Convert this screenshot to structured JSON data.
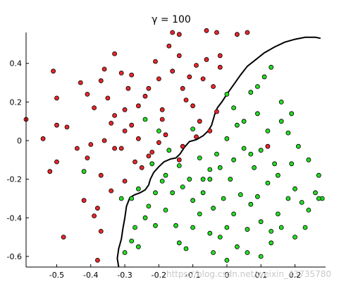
{
  "chart_data": {
    "type": "scatter",
    "title": "γ = 100",
    "xlabel": "",
    "ylabel": "",
    "xlim": [
      -0.59,
      0.29
    ],
    "ylim": [
      -0.655,
      0.56
    ],
    "xticks": [
      -0.5,
      -0.4,
      -0.3,
      -0.2,
      -0.1,
      0,
      0.1,
      0.2
    ],
    "xtick_labels": [
      "-0.5",
      "-0.4",
      "-0.3",
      "-0.2",
      "-0.1",
      "0",
      "0.1",
      "0.2"
    ],
    "yticks": [
      0.4,
      0.2,
      0,
      -0.2,
      -0.4,
      -0.6
    ],
    "ytick_labels": [
      "0.4",
      "0.2",
      "0",
      "-0.2",
      "-0.4",
      "-0.6"
    ],
    "grid": false,
    "series": [
      {
        "color": "#e8262a",
        "points": [
          [
            -0.59,
            0.11
          ],
          [
            -0.51,
            0.36
          ],
          [
            -0.5,
            0.22
          ],
          [
            -0.5,
            0.08
          ],
          [
            -0.5,
            -0.11
          ],
          [
            -0.52,
            -0.16
          ],
          [
            -0.47,
            0.07
          ],
          [
            -0.43,
            0.3
          ],
          [
            -0.41,
            0.24
          ],
          [
            -0.39,
            0.17
          ],
          [
            -0.37,
            0.31
          ],
          [
            -0.36,
            0.37
          ],
          [
            -0.35,
            0.22
          ],
          [
            -0.34,
            0.09
          ],
          [
            -0.36,
            0.0
          ],
          [
            -0.4,
            -0.02
          ],
          [
            -0.41,
            -0.09
          ],
          [
            -0.42,
            -0.31
          ],
          [
            -0.38,
            -0.35
          ],
          [
            -0.37,
            -0.18
          ],
          [
            -0.33,
            -0.04
          ],
          [
            -0.31,
            0.35
          ],
          [
            -0.3,
            0.16
          ],
          [
            -0.28,
            0.08
          ],
          [
            -0.26,
            0.01
          ],
          [
            -0.27,
            -0.11
          ],
          [
            -0.3,
            -0.21
          ],
          [
            -0.29,
            0.27
          ],
          [
            -0.24,
            0.23
          ],
          [
            -0.2,
            0.32
          ],
          [
            -0.19,
            0.16
          ],
          [
            -0.18,
            0.03
          ],
          [
            -0.17,
            0.49
          ],
          [
            -0.14,
            0.44
          ],
          [
            -0.13,
            0.27
          ],
          [
            -0.11,
            0.33
          ],
          [
            -0.09,
            0.39
          ],
          [
            -0.06,
            0.42
          ],
          [
            -0.04,
            0.28
          ],
          [
            -0.03,
            0.15
          ],
          [
            -0.09,
            0.02
          ],
          [
            -0.13,
            -0.03
          ],
          [
            -0.2,
            -0.01
          ],
          [
            -0.23,
            -0.08
          ],
          [
            -0.16,
            0.56
          ],
          [
            -0.14,
            0.55
          ],
          [
            -0.06,
            0.57
          ],
          [
            -0.03,
            0.56
          ],
          [
            -0.02,
            0.44
          ],
          [
            0.03,
            0.55
          ],
          [
            0.06,
            0.56
          ],
          [
            -0.31,
            -0.04
          ],
          [
            -0.33,
            0.45
          ],
          [
            -0.19,
            0.11
          ],
          [
            -0.22,
            -0.06
          ],
          [
            -0.1,
            0.18
          ],
          [
            -0.44,
            -0.04
          ],
          [
            -0.39,
            -0.39
          ],
          [
            -0.38,
            -0.62
          ],
          [
            -0.54,
            0.01
          ],
          [
            -0.34,
            -0.26
          ],
          [
            -0.25,
            -0.14
          ],
          [
            -0.48,
            -0.5
          ],
          [
            -0.37,
            -0.47
          ],
          [
            0.12,
            -0.03
          ],
          [
            -0.28,
            0.34
          ],
          [
            -0.12,
            0.21
          ],
          [
            -0.08,
            0.1
          ],
          [
            -0.05,
            0.05
          ],
          [
            -0.16,
            0.36
          ],
          [
            -0.21,
            0.41
          ],
          [
            -0.26,
            0.18
          ],
          [
            -0.3,
            0.05
          ],
          [
            -0.14,
            -0.1
          ],
          [
            -0.07,
            0.32
          ],
          [
            -0.02,
            0.38
          ],
          [
            -0.33,
            0.13
          ],
          [
            -0.23,
            0.27
          ]
        ]
      },
      {
        "color": "#22dd22",
        "points": [
          [
            0.0,
            0.24
          ],
          [
            0.02,
            0.17
          ],
          [
            0.05,
            0.1
          ],
          [
            0.07,
            0.25
          ],
          [
            0.09,
            0.28
          ],
          [
            0.11,
            0.33
          ],
          [
            0.13,
            0.38
          ],
          [
            0.16,
            0.2
          ],
          [
            0.16,
            0.1
          ],
          [
            0.19,
            0.14
          ],
          [
            0.12,
            0.05
          ],
          [
            0.1,
            -0.05
          ],
          [
            0.08,
            -0.14
          ],
          [
            0.05,
            -0.04
          ],
          [
            0.02,
            -0.1
          ],
          [
            0.0,
            0.01
          ],
          [
            -0.03,
            -0.07
          ],
          [
            -0.05,
            -0.15
          ],
          [
            -0.07,
            -0.2
          ],
          [
            -0.11,
            -0.2
          ],
          [
            -0.14,
            -0.13
          ],
          [
            -0.18,
            -0.18
          ],
          [
            -0.22,
            -0.12
          ],
          [
            -0.21,
            -0.27
          ],
          [
            -0.26,
            -0.25
          ],
          [
            -0.28,
            -0.3
          ],
          [
            -0.31,
            -0.3
          ],
          [
            -0.27,
            -0.45
          ],
          [
            -0.28,
            -0.52
          ],
          [
            -0.3,
            -0.58
          ],
          [
            -0.24,
            -0.4
          ],
          [
            -0.21,
            -0.44
          ],
          [
            -0.18,
            -0.36
          ],
          [
            -0.15,
            -0.44
          ],
          [
            -0.14,
            -0.53
          ],
          [
            -0.12,
            -0.56
          ],
          [
            -0.1,
            -0.45
          ],
          [
            -0.08,
            -0.38
          ],
          [
            -0.05,
            -0.48
          ],
          [
            -0.04,
            -0.58
          ],
          [
            -0.02,
            -0.5
          ],
          [
            0.0,
            -0.45
          ],
          [
            0.02,
            -0.38
          ],
          [
            0.04,
            -0.28
          ],
          [
            0.07,
            -0.33
          ],
          [
            0.1,
            -0.42
          ],
          [
            0.13,
            -0.47
          ],
          [
            0.15,
            -0.38
          ],
          [
            0.18,
            -0.3
          ],
          [
            0.2,
            -0.25
          ],
          [
            0.22,
            -0.32
          ],
          [
            0.23,
            -0.45
          ],
          [
            0.24,
            -0.36
          ],
          [
            0.26,
            -0.27
          ],
          [
            0.27,
            -0.18
          ],
          [
            0.24,
            -0.1
          ],
          [
            0.21,
            -0.03
          ],
          [
            0.18,
            0.04
          ],
          [
            0.14,
            -0.12
          ],
          [
            0.12,
            -0.22
          ],
          [
            0.09,
            -0.29
          ],
          [
            0.06,
            -0.46
          ],
          [
            0.03,
            -0.55
          ],
          [
            0.0,
            -0.62
          ],
          [
            0.06,
            -0.58
          ],
          [
            0.1,
            -0.6
          ],
          [
            0.13,
            -0.53
          ],
          [
            0.16,
            -0.45
          ],
          [
            0.2,
            -0.5
          ],
          [
            -0.01,
            -0.3
          ],
          [
            -0.04,
            -0.35
          ],
          [
            -0.07,
            -0.27
          ],
          [
            -0.1,
            -0.31
          ],
          [
            -0.13,
            -0.24
          ],
          [
            -0.16,
            -0.27
          ],
          [
            -0.19,
            -0.21
          ],
          [
            -0.23,
            -0.34
          ],
          [
            -0.2,
            0.05
          ],
          [
            -0.24,
            0.11
          ],
          [
            -0.1,
            0.06
          ],
          [
            0.03,
            0.08
          ],
          [
            -0.42,
            -0.16
          ],
          [
            0.28,
            -0.3
          ],
          [
            0.27,
            -0.3
          ],
          [
            -0.05,
            -0.2
          ],
          [
            0.01,
            -0.2
          ],
          [
            0.07,
            -0.07
          ],
          [
            0.15,
            -0.18
          ],
          [
            0.19,
            -0.12
          ],
          [
            -0.02,
            -0.14
          ],
          [
            -0.08,
            -0.09
          ],
          [
            0.09,
            0.14
          ],
          [
            -0.17,
            -0.05
          ],
          [
            -0.26,
            -0.55
          ]
        ]
      }
    ],
    "decision_boundary": [
      [
        -0.318,
        -0.655
      ],
      [
        -0.322,
        -0.61
      ],
      [
        -0.318,
        -0.56
      ],
      [
        -0.31,
        -0.51
      ],
      [
        -0.306,
        -0.46
      ],
      [
        -0.3,
        -0.4
      ],
      [
        -0.295,
        -0.34
      ],
      [
        -0.285,
        -0.295
      ],
      [
        -0.27,
        -0.28
      ],
      [
        -0.255,
        -0.27
      ],
      [
        -0.24,
        -0.255
      ],
      [
        -0.23,
        -0.23
      ],
      [
        -0.225,
        -0.2
      ],
      [
        -0.215,
        -0.165
      ],
      [
        -0.2,
        -0.135
      ],
      [
        -0.185,
        -0.11
      ],
      [
        -0.165,
        -0.095
      ],
      [
        -0.15,
        -0.09
      ],
      [
        -0.138,
        -0.07
      ],
      [
        -0.125,
        -0.035
      ],
      [
        -0.11,
        -0.005
      ],
      [
        -0.09,
        0.005
      ],
      [
        -0.07,
        0.025
      ],
      [
        -0.055,
        0.05
      ],
      [
        -0.045,
        0.08
      ],
      [
        -0.04,
        0.11
      ],
      [
        -0.035,
        0.14
      ],
      [
        -0.028,
        0.17
      ],
      [
        -0.015,
        0.2
      ],
      [
        0.0,
        0.24
      ],
      [
        0.02,
        0.29
      ],
      [
        0.04,
        0.34
      ],
      [
        0.06,
        0.385
      ],
      [
        0.085,
        0.42
      ],
      [
        0.11,
        0.455
      ],
      [
        0.14,
        0.485
      ],
      [
        0.17,
        0.51
      ],
      [
        0.2,
        0.525
      ],
      [
        0.23,
        0.535
      ],
      [
        0.26,
        0.535
      ],
      [
        0.275,
        0.53
      ]
    ],
    "watermark": "https://blog.csdn.net/weixin_43735780"
  }
}
